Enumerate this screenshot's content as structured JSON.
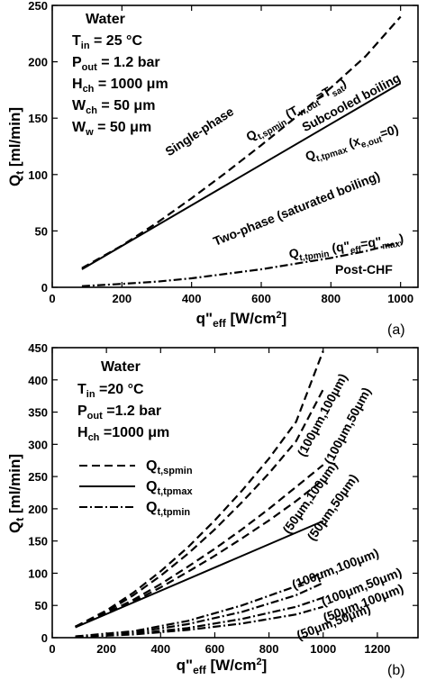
{
  "chart_data": [
    {
      "type": "line",
      "panel_label": "(a)",
      "xlabel": "q\"eff [W/cm2]",
      "ylabel": "Qt [ml/min]",
      "xlim": [
        0,
        1050
      ],
      "ylim": [
        0,
        250
      ],
      "xticks": [
        0,
        200,
        400,
        600,
        800,
        1000
      ],
      "yticks": [
        0,
        50,
        100,
        150,
        200,
        250
      ],
      "info": [
        "Water",
        "Tin = 25 °C",
        "Pout = 1.2 bar",
        "Hch = 1000 μm",
        "Wch = 50 μm",
        "Ww = 50 μm"
      ],
      "regions": [
        "Single-phase",
        "Subcooled boiling",
        "Two-phase (saturated boiling)",
        "Post-CHF"
      ],
      "series": [
        {
          "name": "Qt,spmin (Tw,out=Tsat)",
          "style": "dashed",
          "x": [
            85,
            200,
            300,
            400,
            500,
            600,
            700,
            800,
            900,
            1000
          ],
          "y": [
            17,
            37,
            57,
            79,
            102,
            126,
            151,
            177,
            205,
            240
          ]
        },
        {
          "name": "Qt,tpmax (xe,out=0)",
          "style": "solid",
          "x": [
            85,
            1000
          ],
          "y": [
            16,
            181
          ]
        },
        {
          "name": "Qt,tpmin (q\"eff=q\"max)",
          "style": "dashdot",
          "x": [
            85,
            200,
            300,
            400,
            500,
            600,
            700,
            800,
            900,
            1000
          ],
          "y": [
            1,
            3,
            5,
            8,
            12,
            16,
            21,
            26,
            32,
            40
          ]
        }
      ]
    },
    {
      "type": "line",
      "panel_label": "(b)",
      "xlabel": "q\"eff [W/cm2]",
      "ylabel": "Qt [ml/min]",
      "xlim": [
        0,
        1350
      ],
      "ylim": [
        0,
        450
      ],
      "xticks": [
        0,
        200,
        400,
        600,
        800,
        1000,
        1200
      ],
      "yticks": [
        0,
        50,
        100,
        150,
        200,
        250,
        300,
        350,
        400,
        450
      ],
      "info": [
        "Water",
        "Tin =20 °C",
        "Pout =1.2 bar",
        "Hch =1000 μm"
      ],
      "legend": [
        {
          "label": "Qt,spmin",
          "style": "dashed"
        },
        {
          "label": "Qt,tpmax",
          "style": "solid"
        },
        {
          "label": "Qt,tpmin",
          "style": "dashdot"
        }
      ],
      "curve_labels": [
        "(100μm,100μm)",
        "(100μm,50μm)",
        "(50μm,100μm)",
        "(50μm,50μm)",
        "(100μm,100μm)",
        "(100μm,50μm)",
        "(50μm,100μm)",
        "(50μm,50μm)"
      ],
      "series": [
        {
          "name": "(100μm,100μm)",
          "style": "dashed",
          "x": [
            85,
            200,
            300,
            400,
            500,
            600,
            700,
            800,
            900,
            1000
          ],
          "y": [
            17,
            42,
            70,
            103,
            140,
            182,
            228,
            278,
            335,
            445
          ]
        },
        {
          "name": "(100μm,50μm)",
          "style": "dashed",
          "x": [
            85,
            200,
            300,
            400,
            500,
            600,
            700,
            800,
            900,
            1000
          ],
          "y": [
            17,
            40,
            66,
            96,
            130,
            168,
            210,
            255,
            305,
            385
          ]
        },
        {
          "name": "(50μm,100μm)",
          "style": "dashed",
          "x": [
            85,
            200,
            300,
            400,
            500,
            600,
            700,
            800,
            900,
            1000
          ],
          "y": [
            17,
            38,
            59,
            83,
            110,
            138,
            168,
            200,
            234,
            268
          ]
        },
        {
          "name": "(50μm,50μm)",
          "style": "dashed",
          "x": [
            85,
            200,
            300,
            400,
            500,
            600,
            700,
            800,
            900,
            1000
          ],
          "y": [
            17,
            37,
            56,
            78,
            102,
            127,
            154,
            182,
            212,
            245
          ]
        },
        {
          "name": "Qt,tpmax",
          "style": "solid",
          "x": [
            85,
            1000
          ],
          "y": [
            16,
            181
          ]
        },
        {
          "name": "(100μm,100μm)",
          "style": "dashdot",
          "x": [
            85,
            300,
            500,
            700,
            900,
            1000
          ],
          "y": [
            2,
            10,
            26,
            50,
            80,
            102
          ]
        },
        {
          "name": "(100μm,50μm)",
          "style": "dashdot",
          "x": [
            85,
            300,
            500,
            700,
            900,
            1000
          ],
          "y": [
            2,
            8,
            21,
            40,
            66,
            85
          ]
        },
        {
          "name": "(50μm,100μm)",
          "style": "dashdot",
          "x": [
            85,
            300,
            500,
            700,
            900,
            1000
          ],
          "y": [
            1,
            6,
            15,
            29,
            48,
            62
          ]
        },
        {
          "name": "(50μm,50μm)",
          "style": "dashdot",
          "x": [
            85,
            300,
            500,
            700,
            900,
            1000
          ],
          "y": [
            1,
            5,
            12,
            22,
            36,
            48
          ]
        }
      ]
    }
  ]
}
